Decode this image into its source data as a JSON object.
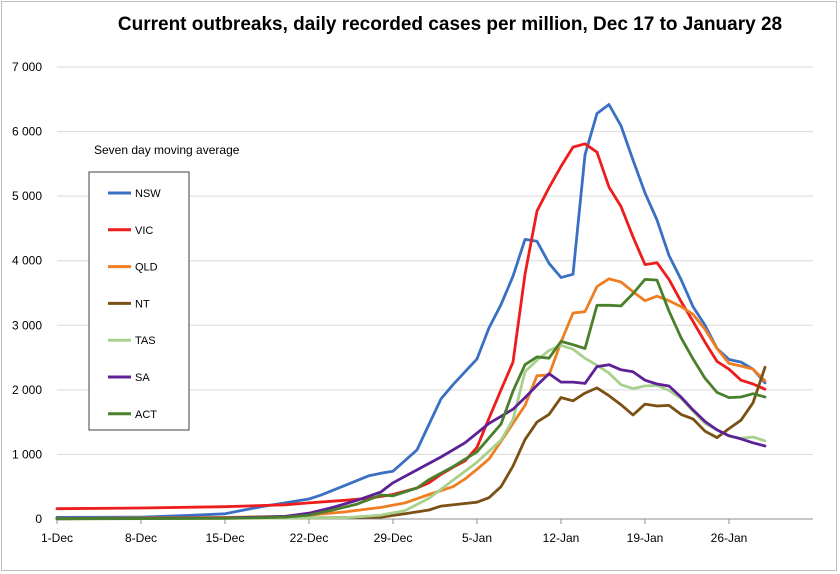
{
  "chart_data": {
    "type": "line",
    "title": "Current outbreaks, daily recorded cases per million, Dec 17 to January 28",
    "annotation": "Seven day moving average",
    "xlabel": "",
    "ylabel": "",
    "ylim": [
      0,
      7000
    ],
    "yticks": [
      0,
      1000,
      2000,
      3000,
      4000,
      5000,
      6000,
      7000
    ],
    "ytick_labels": [
      "0",
      "1 000",
      "2 000",
      "3 000",
      "4 000",
      "5 000",
      "6 000",
      "7 000"
    ],
    "xlim": [
      "2021-12-01",
      "2022-02-02"
    ],
    "xticks": [
      "2021-12-01",
      "2021-12-08",
      "2021-12-15",
      "2021-12-22",
      "2021-12-29",
      "2022-01-05",
      "2022-01-12",
      "2022-01-19",
      "2022-01-26"
    ],
    "xtick_labels": [
      "1-Dec",
      "8-Dec",
      "15-Dec",
      "22-Dec",
      "29-Dec",
      "5-Jan",
      "12-Jan",
      "19-Jan",
      "26-Jan"
    ],
    "grid": true,
    "legend_position": "left",
    "series": [
      {
        "name": "NSW",
        "color": "#3a70c4",
        "points": [
          [
            "2021-12-01",
            25
          ],
          [
            "2021-12-08",
            30
          ],
          [
            "2021-12-12",
            55
          ],
          [
            "2021-12-15",
            80
          ],
          [
            "2021-12-18",
            190
          ],
          [
            "2021-12-20",
            250
          ],
          [
            "2021-12-22",
            310
          ],
          [
            "2021-12-23",
            370
          ],
          [
            "2021-12-25",
            520
          ],
          [
            "2021-12-27",
            670
          ],
          [
            "2021-12-28",
            710
          ],
          [
            "2021-12-29",
            740
          ],
          [
            "2021-12-31",
            1070
          ],
          [
            "2022-01-02",
            1860
          ],
          [
            "2022-01-03",
            2080
          ],
          [
            "2022-01-04",
            2280
          ],
          [
            "2022-01-05",
            2480
          ],
          [
            "2022-01-06",
            2960
          ],
          [
            "2022-01-07",
            3320
          ],
          [
            "2022-01-08",
            3760
          ],
          [
            "2022-01-09",
            4330
          ],
          [
            "2022-01-10",
            4300
          ],
          [
            "2022-01-11",
            3960
          ],
          [
            "2022-01-12",
            3740
          ],
          [
            "2022-01-13",
            3790
          ],
          [
            "2022-01-14",
            5640
          ],
          [
            "2022-01-15",
            6280
          ],
          [
            "2022-01-16",
            6420
          ],
          [
            "2022-01-17",
            6090
          ],
          [
            "2022-01-18",
            5560
          ],
          [
            "2022-01-19",
            5050
          ],
          [
            "2022-01-20",
            4630
          ],
          [
            "2022-01-21",
            4080
          ],
          [
            "2022-01-22",
            3710
          ],
          [
            "2022-01-23",
            3290
          ],
          [
            "2022-01-24",
            3000
          ],
          [
            "2022-01-25",
            2640
          ],
          [
            "2022-01-26",
            2470
          ],
          [
            "2022-01-27",
            2430
          ],
          [
            "2022-01-28",
            2320
          ],
          [
            "2022-01-29",
            2110
          ]
        ]
      },
      {
        "name": "VIC",
        "color": "#ee1c1c",
        "points": [
          [
            "2021-12-01",
            160
          ],
          [
            "2021-12-08",
            170
          ],
          [
            "2021-12-15",
            190
          ],
          [
            "2021-12-20",
            220
          ],
          [
            "2021-12-22",
            250
          ],
          [
            "2021-12-25",
            290
          ],
          [
            "2021-12-27",
            320
          ],
          [
            "2021-12-29",
            380
          ],
          [
            "2021-12-31",
            480
          ],
          [
            "2022-01-01",
            560
          ],
          [
            "2022-01-02",
            690
          ],
          [
            "2022-01-03",
            800
          ],
          [
            "2022-01-04",
            900
          ],
          [
            "2022-01-05",
            1110
          ],
          [
            "2022-01-06",
            1560
          ],
          [
            "2022-01-07",
            2000
          ],
          [
            "2022-01-08",
            2430
          ],
          [
            "2022-01-09",
            3790
          ],
          [
            "2022-01-10",
            4770
          ],
          [
            "2022-01-11",
            5130
          ],
          [
            "2022-01-12",
            5460
          ],
          [
            "2022-01-13",
            5760
          ],
          [
            "2022-01-14",
            5810
          ],
          [
            "2022-01-15",
            5680
          ],
          [
            "2022-01-16",
            5140
          ],
          [
            "2022-01-17",
            4840
          ],
          [
            "2022-01-18",
            4370
          ],
          [
            "2022-01-19",
            3940
          ],
          [
            "2022-01-20",
            3970
          ],
          [
            "2022-01-21",
            3710
          ],
          [
            "2022-01-22",
            3370
          ],
          [
            "2022-01-23",
            3060
          ],
          [
            "2022-01-24",
            2740
          ],
          [
            "2022-01-25",
            2440
          ],
          [
            "2022-01-26",
            2320
          ],
          [
            "2022-01-27",
            2150
          ],
          [
            "2022-01-28",
            2090
          ],
          [
            "2022-01-29",
            2010
          ]
        ]
      },
      {
        "name": "QLD",
        "color": "#ef7d22",
        "points": [
          [
            "2021-12-01",
            10
          ],
          [
            "2021-12-15",
            25
          ],
          [
            "2021-12-20",
            40
          ],
          [
            "2021-12-22",
            60
          ],
          [
            "2021-12-25",
            110
          ],
          [
            "2021-12-28",
            180
          ],
          [
            "2021-12-30",
            250
          ],
          [
            "2022-01-01",
            380
          ],
          [
            "2022-01-03",
            500
          ],
          [
            "2022-01-04",
            620
          ],
          [
            "2022-01-05",
            770
          ],
          [
            "2022-01-06",
            930
          ],
          [
            "2022-01-07",
            1200
          ],
          [
            "2022-01-08",
            1480
          ],
          [
            "2022-01-09",
            1760
          ],
          [
            "2022-01-10",
            2220
          ],
          [
            "2022-01-11",
            2230
          ],
          [
            "2022-01-12",
            2740
          ],
          [
            "2022-01-13",
            3190
          ],
          [
            "2022-01-14",
            3210
          ],
          [
            "2022-01-15",
            3600
          ],
          [
            "2022-01-16",
            3720
          ],
          [
            "2022-01-17",
            3670
          ],
          [
            "2022-01-18",
            3520
          ],
          [
            "2022-01-19",
            3380
          ],
          [
            "2022-01-20",
            3450
          ],
          [
            "2022-01-21",
            3380
          ],
          [
            "2022-01-22",
            3290
          ],
          [
            "2022-01-23",
            3170
          ],
          [
            "2022-01-24",
            2940
          ],
          [
            "2022-01-25",
            2640
          ],
          [
            "2022-01-26",
            2410
          ],
          [
            "2022-01-27",
            2370
          ],
          [
            "2022-01-28",
            2320
          ],
          [
            "2022-01-29",
            2140
          ]
        ]
      },
      {
        "name": "NT",
        "color": "#7a5014",
        "points": [
          [
            "2021-12-01",
            5
          ],
          [
            "2021-12-25",
            20
          ],
          [
            "2021-12-28",
            30
          ],
          [
            "2021-12-30",
            80
          ],
          [
            "2022-01-01",
            140
          ],
          [
            "2022-01-02",
            200
          ],
          [
            "2022-01-04",
            240
          ],
          [
            "2022-01-05",
            260
          ],
          [
            "2022-01-06",
            330
          ],
          [
            "2022-01-07",
            500
          ],
          [
            "2022-01-08",
            820
          ],
          [
            "2022-01-09",
            1230
          ],
          [
            "2022-01-10",
            1500
          ],
          [
            "2022-01-11",
            1620
          ],
          [
            "2022-01-12",
            1880
          ],
          [
            "2022-01-13",
            1830
          ],
          [
            "2022-01-14",
            1950
          ],
          [
            "2022-01-15",
            2030
          ],
          [
            "2022-01-16",
            1910
          ],
          [
            "2022-01-17",
            1770
          ],
          [
            "2022-01-18",
            1610
          ],
          [
            "2022-01-19",
            1780
          ],
          [
            "2022-01-20",
            1750
          ],
          [
            "2022-01-21",
            1760
          ],
          [
            "2022-01-22",
            1620
          ],
          [
            "2022-01-23",
            1550
          ],
          [
            "2022-01-24",
            1360
          ],
          [
            "2022-01-25",
            1260
          ],
          [
            "2022-01-26",
            1400
          ],
          [
            "2022-01-27",
            1530
          ],
          [
            "2022-01-28",
            1800
          ],
          [
            "2022-01-29",
            2350
          ]
        ]
      },
      {
        "name": "TAS",
        "color": "#a9d18e",
        "points": [
          [
            "2021-12-01",
            0
          ],
          [
            "2021-12-25",
            20
          ],
          [
            "2021-12-28",
            60
          ],
          [
            "2021-12-30",
            130
          ],
          [
            "2022-01-01",
            320
          ],
          [
            "2022-01-03",
            600
          ],
          [
            "2022-01-05",
            880
          ],
          [
            "2022-01-06",
            1050
          ],
          [
            "2022-01-07",
            1220
          ],
          [
            "2022-01-08",
            1540
          ],
          [
            "2022-01-09",
            2280
          ],
          [
            "2022-01-10",
            2460
          ],
          [
            "2022-01-11",
            2610
          ],
          [
            "2022-01-12",
            2690
          ],
          [
            "2022-01-13",
            2630
          ],
          [
            "2022-01-14",
            2490
          ],
          [
            "2022-01-15",
            2380
          ],
          [
            "2022-01-16",
            2260
          ],
          [
            "2022-01-17",
            2080
          ],
          [
            "2022-01-18",
            2020
          ],
          [
            "2022-01-19",
            2060
          ],
          [
            "2022-01-20",
            2070
          ],
          [
            "2022-01-21",
            1990
          ],
          [
            "2022-01-22",
            1870
          ],
          [
            "2022-01-23",
            1670
          ],
          [
            "2022-01-24",
            1480
          ],
          [
            "2022-01-25",
            1380
          ],
          [
            "2022-01-26",
            1280
          ],
          [
            "2022-01-27",
            1250
          ],
          [
            "2022-01-28",
            1270
          ],
          [
            "2022-01-29",
            1210
          ]
        ]
      },
      {
        "name": "SA",
        "color": "#5c2196",
        "points": [
          [
            "2021-12-01",
            5
          ],
          [
            "2021-12-15",
            15
          ],
          [
            "2021-12-20",
            40
          ],
          [
            "2021-12-22",
            90
          ],
          [
            "2021-12-24",
            180
          ],
          [
            "2021-12-26",
            290
          ],
          [
            "2021-12-28",
            420
          ],
          [
            "2021-12-29",
            560
          ],
          [
            "2021-12-31",
            760
          ],
          [
            "2022-01-02",
            960
          ],
          [
            "2022-01-04",
            1180
          ],
          [
            "2022-01-06",
            1480
          ],
          [
            "2022-01-08",
            1700
          ],
          [
            "2022-01-09",
            1880
          ],
          [
            "2022-01-10",
            2070
          ],
          [
            "2022-01-11",
            2250
          ],
          [
            "2022-01-12",
            2120
          ],
          [
            "2022-01-13",
            2120
          ],
          [
            "2022-01-14",
            2100
          ],
          [
            "2022-01-15",
            2360
          ],
          [
            "2022-01-16",
            2390
          ],
          [
            "2022-01-17",
            2310
          ],
          [
            "2022-01-18",
            2280
          ],
          [
            "2022-01-19",
            2150
          ],
          [
            "2022-01-20",
            2090
          ],
          [
            "2022-01-21",
            2060
          ],
          [
            "2022-01-22",
            1890
          ],
          [
            "2022-01-23",
            1690
          ],
          [
            "2022-01-24",
            1510
          ],
          [
            "2022-01-25",
            1380
          ],
          [
            "2022-01-26",
            1290
          ],
          [
            "2022-01-27",
            1240
          ],
          [
            "2022-01-28",
            1180
          ],
          [
            "2022-01-29",
            1130
          ]
        ]
      },
      {
        "name": "ACT",
        "color": "#4a7f2c",
        "points": [
          [
            "2021-12-01",
            5
          ],
          [
            "2021-12-15",
            10
          ],
          [
            "2021-12-18",
            20
          ],
          [
            "2021-12-20",
            30
          ],
          [
            "2021-12-22",
            60
          ],
          [
            "2021-12-24",
            140
          ],
          [
            "2021-12-26",
            230
          ],
          [
            "2021-12-27",
            300
          ],
          [
            "2021-12-28",
            370
          ],
          [
            "2021-12-29",
            360
          ],
          [
            "2021-12-31",
            480
          ],
          [
            "2022-01-01",
            610
          ],
          [
            "2022-01-03",
            810
          ],
          [
            "2022-01-05",
            1040
          ],
          [
            "2022-01-07",
            1470
          ],
          [
            "2022-01-08",
            1980
          ],
          [
            "2022-01-09",
            2390
          ],
          [
            "2022-01-10",
            2510
          ],
          [
            "2022-01-11",
            2490
          ],
          [
            "2022-01-12",
            2750
          ],
          [
            "2022-01-13",
            2700
          ],
          [
            "2022-01-14",
            2640
          ],
          [
            "2022-01-15",
            3310
          ],
          [
            "2022-01-16",
            3310
          ],
          [
            "2022-01-17",
            3300
          ],
          [
            "2022-01-18",
            3490
          ],
          [
            "2022-01-19",
            3710
          ],
          [
            "2022-01-20",
            3700
          ],
          [
            "2022-01-21",
            3220
          ],
          [
            "2022-01-22",
            2810
          ],
          [
            "2022-01-23",
            2480
          ],
          [
            "2022-01-24",
            2180
          ],
          [
            "2022-01-25",
            1960
          ],
          [
            "2022-01-26",
            1880
          ],
          [
            "2022-01-27",
            1890
          ],
          [
            "2022-01-28",
            1940
          ],
          [
            "2022-01-29",
            1890
          ]
        ]
      }
    ]
  }
}
